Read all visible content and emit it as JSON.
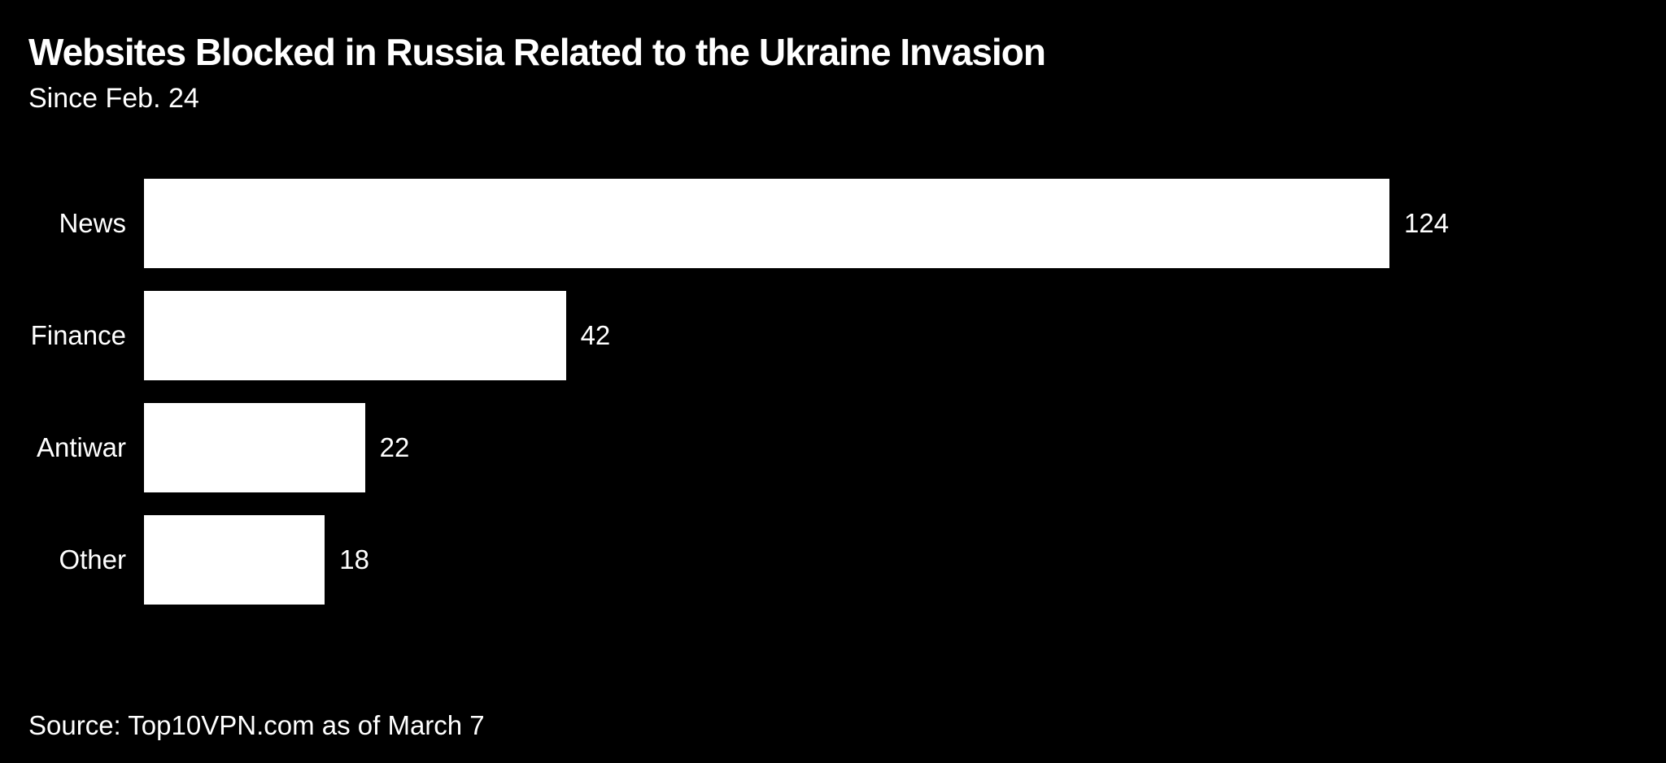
{
  "header": {
    "title": "Websites Blocked in Russia Related to the Ukraine Invasion",
    "subtitle": "Since Feb. 24"
  },
  "footer": {
    "source": "Source: Top10VPN.com as of March 7"
  },
  "colors": {
    "background": "#000000",
    "bar": "#ffffff",
    "text": "#ffffff"
  },
  "chart_data": {
    "type": "bar",
    "orientation": "horizontal",
    "title": "Websites Blocked in Russia Related to the Ukraine Invasion",
    "subtitle": "Since Feb. 24",
    "categories": [
      "News",
      "Finance",
      "Antiwar",
      "Other"
    ],
    "values": [
      124,
      42,
      22,
      18
    ],
    "value_labels": [
      "124",
      "42",
      "22",
      "18"
    ],
    "xlabel": "",
    "ylabel": "",
    "xlim": [
      0,
      124
    ],
    "grid": false,
    "legend": false,
    "source": "Source: Top10VPN.com as of March 7"
  }
}
